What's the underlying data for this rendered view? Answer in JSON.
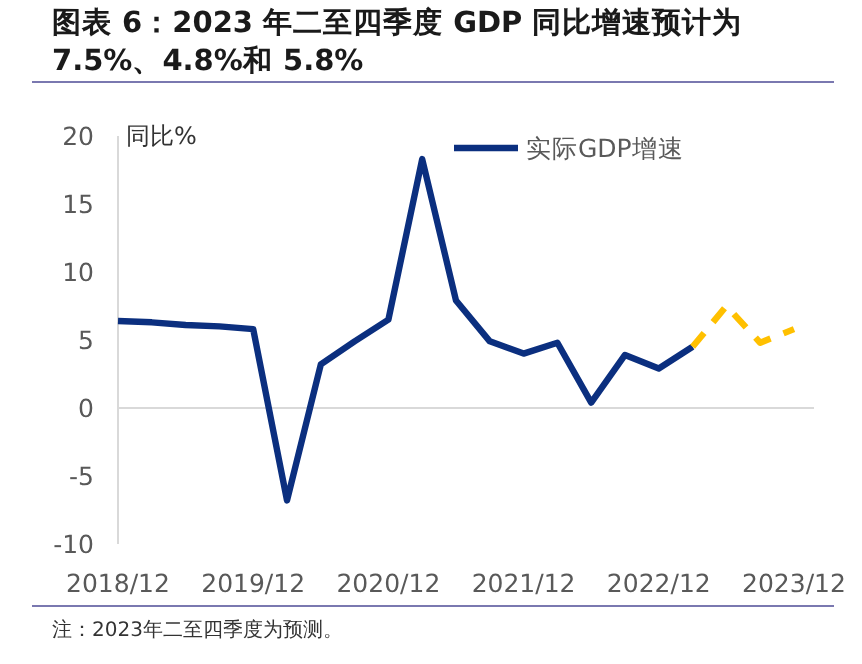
{
  "chart_data": {
    "type": "line",
    "title": "图表 6：2023 年二至四季度 GDP 同比增速预计为 7.5%、4.8%和 5.8%",
    "ylabel": "同比%",
    "categories": [
      "2018/12",
      null,
      null,
      null,
      "2019/12",
      null,
      null,
      null,
      "2020/12",
      null,
      null,
      null,
      "2021/12",
      null,
      null,
      null,
      "2022/12",
      null,
      null,
      null,
      "2023/12"
    ],
    "series": [
      {
        "name": "实际GDP增速",
        "color": "#0b2f7f",
        "line_style": "solid",
        "values": [
          6.4,
          6.3,
          6.1,
          6.0,
          5.8,
          -6.8,
          3.2,
          4.9,
          6.5,
          18.3,
          7.9,
          4.9,
          4.0,
          4.8,
          0.4,
          3.9,
          2.9,
          4.5,
          null,
          null,
          null
        ]
      },
      {
        "color": "#ffc000",
        "line_style": "dashed",
        "values": [
          null,
          null,
          null,
          null,
          null,
          null,
          null,
          null,
          null,
          null,
          null,
          null,
          null,
          null,
          null,
          null,
          null,
          4.5,
          7.5,
          4.8,
          5.8
        ]
      }
    ],
    "ylim": [
      -10,
      20
    ],
    "yticks": [
      -10,
      -5,
      0,
      5,
      10,
      15,
      20
    ],
    "legend": "top right",
    "annotations": [
      "注：2023年二至四季度为预测。"
    ]
  }
}
